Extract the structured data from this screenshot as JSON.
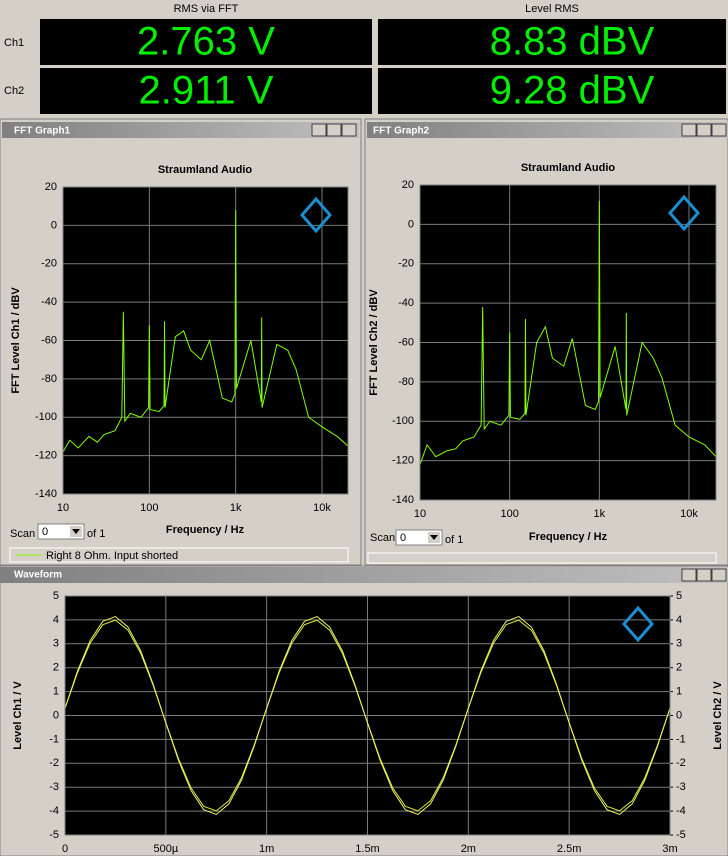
{
  "meters": {
    "headers": [
      "RMS via FFT",
      "Level RMS"
    ],
    "rows": [
      {
        "label": "Ch1",
        "values": [
          "2.763 V",
          "8.83 dBV"
        ]
      },
      {
        "label": "Ch2",
        "values": [
          "2.911 V",
          "9.28 dBV"
        ]
      }
    ]
  },
  "windows": [
    {
      "title": "FFT Graph1",
      "scan_label": "Scan",
      "scan_value": "0",
      "scan_of": "of 1"
    },
    {
      "title": "FFT Graph2",
      "scan_label": "Scan",
      "scan_value": "0",
      "scan_of": "of 1"
    },
    {
      "title": "Waveform"
    }
  ],
  "chart_data": [
    {
      "type": "line",
      "title": "Straumland Audio",
      "xlabel": "Frequency / Hz",
      "ylabel": "FFT Level Ch1 / dBV",
      "log_x": true,
      "grid": true,
      "xlim": [
        10,
        20000
      ],
      "ylim": [
        -140,
        20
      ],
      "xticks": [
        10,
        100,
        {
          "value": 1000,
          "label": "1k"
        },
        {
          "value": 10000,
          "label": "10k"
        }
      ],
      "yticks": [
        -140,
        -120,
        -100,
        -80,
        -60,
        -40,
        -20,
        0,
        20
      ],
      "x": [
        10,
        12,
        15,
        20,
        25,
        30,
        40,
        48,
        50,
        52,
        60,
        80,
        98,
        100,
        102,
        130,
        148,
        150,
        152,
        200,
        250,
        300,
        400,
        500,
        700,
        900,
        980,
        1000,
        1020,
        1500,
        1980,
        2000,
        2020,
        3000,
        4000,
        5000,
        7000,
        10000,
        15000,
        20000
      ],
      "series": [
        {
          "name": "Right 8 Ohm. Input shorted",
          "color": "#80ff00",
          "values": [
            -118,
            -112,
            -116,
            -110,
            -113,
            -109,
            -107,
            -100,
            -45,
            -102,
            -98,
            -100,
            -95,
            -52,
            -96,
            -97,
            -94,
            -50,
            -95,
            -58,
            -55,
            -65,
            -70,
            -60,
            -90,
            -92,
            -88,
            8,
            -85,
            -60,
            -92,
            -48,
            -95,
            -62,
            -65,
            -75,
            -100,
            -105,
            -110,
            -115
          ]
        }
      ]
    },
    {
      "type": "line",
      "title": "Straumland Audio",
      "xlabel": "Frequency / Hz",
      "ylabel": "FFT Level Ch2 / dBV",
      "log_x": true,
      "grid": true,
      "xlim": [
        10,
        20000
      ],
      "ylim": [
        -140,
        20
      ],
      "xticks": [
        10,
        100,
        {
          "value": 1000,
          "label": "1k"
        },
        {
          "value": 10000,
          "label": "10k"
        }
      ],
      "yticks": [
        -140,
        -120,
        -100,
        -80,
        -60,
        -40,
        -20,
        0,
        20
      ],
      "x": [
        10,
        12,
        15,
        20,
        25,
        30,
        40,
        48,
        50,
        52,
        60,
        80,
        98,
        100,
        102,
        130,
        148,
        150,
        152,
        200,
        250,
        300,
        400,
        500,
        700,
        900,
        980,
        1000,
        1020,
        1500,
        1980,
        2000,
        2020,
        3000,
        4000,
        5000,
        7000,
        10000,
        15000,
        20000
      ],
      "series": [
        {
          "color": "#80ff00",
          "values": [
            -122,
            -112,
            -118,
            -115,
            -114,
            -110,
            -108,
            -102,
            -42,
            -104,
            -100,
            -102,
            -97,
            -55,
            -98,
            -99,
            -96,
            -48,
            -97,
            -60,
            -52,
            -68,
            -72,
            -58,
            -92,
            -94,
            -90,
            12,
            -88,
            -62,
            -94,
            -45,
            -97,
            -60,
            -68,
            -78,
            -102,
            -108,
            -112,
            -118
          ]
        }
      ]
    },
    {
      "type": "line",
      "ylabel": "Level Ch1 / V",
      "y2label": "Level Ch2 / V",
      "grid": true,
      "xlim": [
        0,
        0.003
      ],
      "ylim": [
        -5,
        5
      ],
      "y2lim": [
        -5,
        5
      ],
      "xticks": [
        0,
        {
          "value": 0.0005,
          "label": "500µ"
        },
        {
          "value": 0.001,
          "label": "1m"
        },
        {
          "value": 0.0015,
          "label": "1.5m"
        },
        {
          "value": 0.002,
          "label": "2m"
        },
        {
          "value": 0.0025,
          "label": "2.5m"
        },
        {
          "value": 0.003,
          "label": "3m"
        }
      ],
      "yticks": [
        -5,
        -4,
        -3,
        -2,
        -1,
        0,
        1,
        2,
        3,
        4,
        5
      ],
      "y2ticks": [
        -5,
        -4,
        -3,
        -2,
        -1,
        0,
        1,
        2,
        3,
        4,
        5
      ],
      "x": [
        0,
        6.25e-05,
        0.000125,
        0.0001875,
        0.00025,
        0.0003125,
        0.000375,
        0.0004375,
        0.0005,
        0.0005625,
        0.000625,
        0.0006875,
        0.00075,
        0.0008125,
        0.000875,
        0.0009375,
        0.001,
        0.0010625,
        0.001125,
        0.0011875,
        0.00125,
        0.0013125,
        0.001375,
        0.0014375,
        0.0015,
        0.0015625,
        0.001625,
        0.0016875,
        0.00175,
        0.0018125,
        0.001875,
        0.0019375,
        0.002,
        0.0020625,
        0.002125,
        0.0021875,
        0.00225,
        0.0023125,
        0.002375,
        0.0024375,
        0.0025,
        0.0025625,
        0.002625,
        0.0026875,
        0.00275,
        0.0028125,
        0.002875,
        0.0029375,
        0.003
      ],
      "series": [
        {
          "color": "#d8f040",
          "values": [
            0.3,
            1.8,
            3.03,
            3.8,
            3.99,
            3.57,
            2.61,
            1.25,
            -0.3,
            -1.8,
            -3.03,
            -3.8,
            -3.99,
            -3.57,
            -2.61,
            -1.25,
            0.3,
            1.8,
            3.03,
            3.8,
            3.99,
            3.57,
            2.61,
            1.25,
            -0.3,
            -1.8,
            -3.03,
            -3.8,
            -3.99,
            -3.57,
            -2.61,
            -1.25,
            0.3,
            1.8,
            3.03,
            3.8,
            3.99,
            3.57,
            2.61,
            1.25,
            -0.3,
            -1.8,
            -3.03,
            -3.8,
            -3.99,
            -3.57,
            -2.61,
            -1.25,
            0.3
          ]
        },
        {
          "color": "#f0f060",
          "axis": "y2",
          "values": [
            0.31,
            1.87,
            3.14,
            3.94,
            4.14,
            3.7,
            2.71,
            1.3,
            -0.31,
            -1.87,
            -3.14,
            -3.94,
            -4.14,
            -3.7,
            -2.71,
            -1.3,
            0.31,
            1.87,
            3.14,
            3.94,
            4.14,
            3.7,
            2.71,
            1.3,
            -0.31,
            -1.87,
            -3.14,
            -3.94,
            -4.14,
            -3.7,
            -2.71,
            -1.3,
            0.31,
            1.87,
            3.14,
            3.94,
            4.14,
            3.7,
            2.71,
            1.3,
            -0.31,
            -1.87,
            -3.14,
            -3.94,
            -4.14,
            -3.7,
            -2.71,
            -1.3,
            0.31
          ]
        }
      ]
    }
  ]
}
